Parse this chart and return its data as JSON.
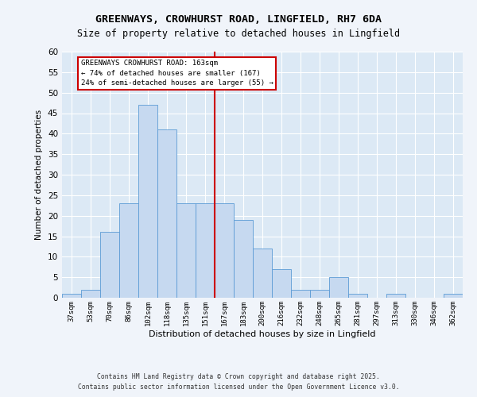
{
  "title1": "GREENWAYS, CROWHURST ROAD, LINGFIELD, RH7 6DA",
  "title2": "Size of property relative to detached houses in Lingfield",
  "xlabel": "Distribution of detached houses by size in Lingfield",
  "ylabel": "Number of detached properties",
  "categories": [
    "37sqm",
    "53sqm",
    "70sqm",
    "86sqm",
    "102sqm",
    "118sqm",
    "135sqm",
    "151sqm",
    "167sqm",
    "183sqm",
    "200sqm",
    "216sqm",
    "232sqm",
    "248sqm",
    "265sqm",
    "281sqm",
    "297sqm",
    "313sqm",
    "330sqm",
    "346sqm",
    "362sqm"
  ],
  "values": [
    1,
    2,
    16,
    23,
    47,
    41,
    23,
    23,
    23,
    19,
    12,
    7,
    2,
    2,
    5,
    1,
    0,
    1,
    0,
    0,
    1
  ],
  "bar_color": "#c6d9f0",
  "bar_edge_color": "#5b9bd5",
  "vline_index": 8,
  "vline_color": "#cc0000",
  "annotation_title": "GREENWAYS CROWHURST ROAD: 163sqm",
  "annotation_line1": "← 74% of detached houses are smaller (167)",
  "annotation_line2": "24% of semi-detached houses are larger (55) →",
  "annotation_box_color": "#cc0000",
  "fig_background_color": "#f0f4fa",
  "ax_background_color": "#dce9f5",
  "ylim": [
    0,
    60
  ],
  "yticks": [
    0,
    5,
    10,
    15,
    20,
    25,
    30,
    35,
    40,
    45,
    50,
    55,
    60
  ],
  "footer1": "Contains HM Land Registry data © Crown copyright and database right 2025.",
  "footer2": "Contains public sector information licensed under the Open Government Licence v3.0."
}
